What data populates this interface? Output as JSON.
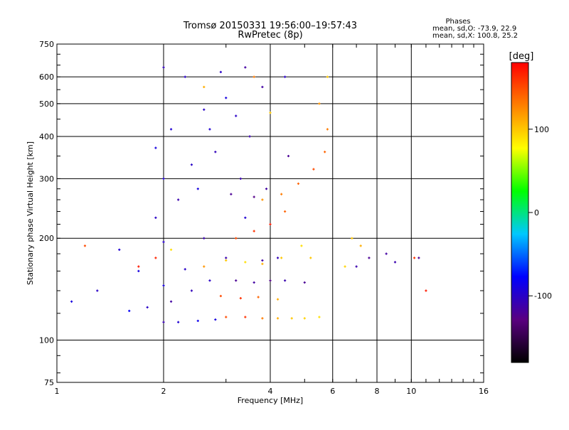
{
  "chart_data": {
    "type": "scatter",
    "title": "Tromsø 20150331 19:56:00–19:57:43",
    "subtitle": "RwPretec (8p)",
    "xlabel": "Frequency [MHz]",
    "ylabel": "Stationary phase Virtual Height [km]",
    "x_scale": "log",
    "y_scale": "log",
    "xlim": [
      1,
      16
    ],
    "ylim": [
      75,
      750
    ],
    "x_ticks": [
      "1",
      "2",
      "4",
      "6",
      "8",
      "10",
      "16"
    ],
    "y_ticks": [
      "75",
      "100",
      "200",
      "300",
      "400",
      "500",
      "600",
      "750"
    ],
    "grid": true,
    "legend": {
      "title": "Phases",
      "line1": "mean, sd,O: -73.9, 22.9",
      "line2": "mean, sd,X: 100.8, 25.2"
    },
    "colorbar": {
      "label": "[deg]",
      "range": [
        -180,
        180
      ],
      "ticks": [
        "100",
        "0",
        "-100"
      ],
      "colors": [
        "#000000",
        "#5a0080",
        "#0000ff",
        "#00c8ff",
        "#00ff00",
        "#ffff00",
        "#ff8000",
        "#ff0000"
      ]
    },
    "series": [
      {
        "name": "O",
        "points": [
          [
            2.0,
            113,
            -110
          ],
          [
            2.2,
            113,
            -95
          ],
          [
            2.5,
            114,
            -85
          ],
          [
            2.8,
            115,
            -90
          ],
          [
            1.6,
            122,
            -80
          ],
          [
            1.8,
            125,
            -100
          ],
          [
            2.1,
            130,
            -115
          ],
          [
            2.4,
            140,
            -105
          ],
          [
            2.0,
            145,
            -90
          ],
          [
            2.7,
            150,
            -100
          ],
          [
            3.2,
            150,
            -120
          ],
          [
            3.6,
            148,
            -115
          ],
          [
            4.0,
            150,
            -125
          ],
          [
            4.4,
            150,
            -110
          ],
          [
            5.0,
            148,
            -120
          ],
          [
            1.7,
            160,
            -90
          ],
          [
            2.3,
            162,
            -100
          ],
          [
            3.0,
            175,
            -110
          ],
          [
            3.8,
            172,
            -115
          ],
          [
            4.2,
            175,
            -105
          ],
          [
            1.5,
            185,
            -95
          ],
          [
            2.0,
            195,
            -100
          ],
          [
            2.6,
            200,
            -110
          ],
          [
            3.4,
            230,
            -95
          ],
          [
            1.9,
            230,
            -100
          ],
          [
            2.2,
            260,
            -110
          ],
          [
            2.5,
            280,
            -90
          ],
          [
            3.1,
            270,
            -120
          ],
          [
            3.6,
            265,
            -125
          ],
          [
            3.9,
            280,
            -115
          ],
          [
            3.3,
            300,
            -110
          ],
          [
            2.0,
            300,
            -95
          ],
          [
            2.4,
            330,
            -100
          ],
          [
            2.8,
            360,
            -105
          ],
          [
            3.5,
            400,
            -110
          ],
          [
            2.1,
            420,
            -95
          ],
          [
            2.6,
            480,
            -100
          ],
          [
            3.0,
            520,
            -90
          ],
          [
            3.8,
            560,
            -115
          ],
          [
            2.3,
            600,
            -100
          ],
          [
            4.5,
            350,
            -120
          ],
          [
            1.3,
            140,
            -100
          ],
          [
            1.1,
            130,
            -90
          ],
          [
            7.0,
            165,
            -110
          ],
          [
            7.6,
            175,
            -120
          ],
          [
            8.5,
            180,
            -115
          ],
          [
            9.0,
            170,
            -110
          ],
          [
            10.5,
            175,
            -120
          ],
          [
            2.9,
            620,
            -100
          ],
          [
            3.4,
            640,
            -115
          ],
          [
            2.0,
            640,
            -105
          ],
          [
            4.4,
            600,
            -100
          ],
          [
            1.9,
            370,
            -90
          ],
          [
            2.7,
            420,
            -95
          ],
          [
            3.2,
            460,
            -100
          ]
        ]
      },
      {
        "name": "X",
        "points": [
          [
            3.0,
            117,
            150
          ],
          [
            3.4,
            117,
            160
          ],
          [
            3.8,
            116,
            130
          ],
          [
            4.2,
            116,
            110
          ],
          [
            4.6,
            116,
            100
          ],
          [
            5.0,
            116,
            95
          ],
          [
            5.5,
            117,
            90
          ],
          [
            2.9,
            135,
            150
          ],
          [
            3.3,
            133,
            160
          ],
          [
            3.7,
            134,
            140
          ],
          [
            4.2,
            132,
            110
          ],
          [
            1.7,
            165,
            170
          ],
          [
            2.6,
            165,
            120
          ],
          [
            3.0,
            172,
            100
          ],
          [
            3.4,
            170,
            90
          ],
          [
            3.8,
            168,
            110
          ],
          [
            4.3,
            175,
            100
          ],
          [
            3.2,
            200,
            150
          ],
          [
            3.6,
            210,
            160
          ],
          [
            4.0,
            220,
            170
          ],
          [
            4.4,
            240,
            140
          ],
          [
            3.8,
            260,
            120
          ],
          [
            4.3,
            270,
            130
          ],
          [
            4.8,
            290,
            140
          ],
          [
            5.3,
            320,
            150
          ],
          [
            5.7,
            360,
            140
          ],
          [
            5.8,
            420,
            130
          ],
          [
            5.5,
            500,
            120
          ],
          [
            5.8,
            600,
            100
          ],
          [
            3.6,
            600,
            130
          ],
          [
            2.6,
            560,
            110
          ],
          [
            4.0,
            470,
            100
          ],
          [
            6.5,
            165,
            95
          ],
          [
            6.8,
            200,
            100
          ],
          [
            7.2,
            190,
            110
          ],
          [
            10.2,
            175,
            160
          ],
          [
            11.0,
            140,
            170
          ],
          [
            1.2,
            190,
            150
          ],
          [
            1.9,
            175,
            165
          ],
          [
            2.1,
            185,
            90
          ],
          [
            4.9,
            190,
            90
          ],
          [
            5.2,
            175,
            100
          ]
        ]
      }
    ]
  }
}
